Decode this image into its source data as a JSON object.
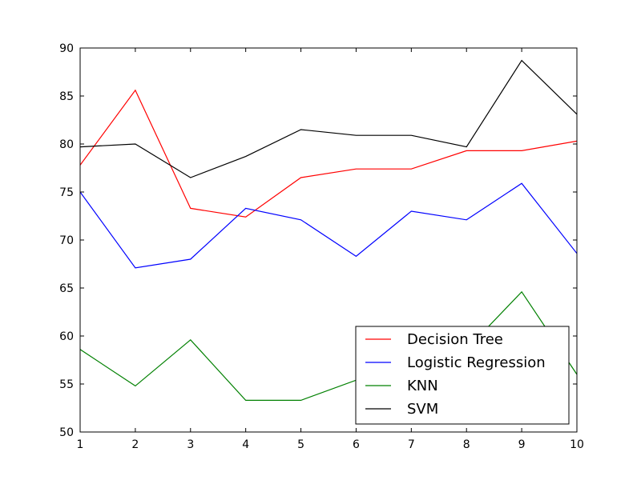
{
  "chart_data": {
    "type": "line",
    "title": "",
    "xlabel": "",
    "ylabel": "",
    "x": [
      1,
      2,
      3,
      4,
      5,
      6,
      7,
      8,
      9,
      10
    ],
    "xlim": [
      1,
      10
    ],
    "ylim": [
      50,
      90
    ],
    "x_ticks": [
      "1",
      "2",
      "3",
      "4",
      "5",
      "6",
      "7",
      "8",
      "9",
      "10"
    ],
    "y_ticks": [
      "50",
      "55",
      "60",
      "65",
      "70",
      "75",
      "80",
      "85",
      "90"
    ],
    "grid": false,
    "legend_position": "lower-right",
    "series": [
      {
        "name": "Decision Tree",
        "color": "#ff0000",
        "values": [
          77.8,
          85.6,
          73.3,
          72.4,
          76.5,
          77.4,
          77.4,
          79.3,
          79.3,
          80.3
        ]
      },
      {
        "name": "Logistic Regression",
        "color": "#0000ff",
        "values": [
          75.0,
          67.1,
          68.0,
          73.3,
          72.1,
          68.3,
          73.0,
          72.1,
          75.9,
          68.6
        ]
      },
      {
        "name": "KNN",
        "color": "#008000",
        "values": [
          58.6,
          54.8,
          59.6,
          53.3,
          53.3,
          55.4,
          55.4,
          58.6,
          64.6,
          56.0
        ]
      },
      {
        "name": "SVM",
        "color": "#000000",
        "values": [
          79.7,
          80.0,
          76.5,
          78.7,
          81.5,
          80.9,
          80.9,
          79.7,
          88.7,
          83.1
        ]
      }
    ]
  }
}
